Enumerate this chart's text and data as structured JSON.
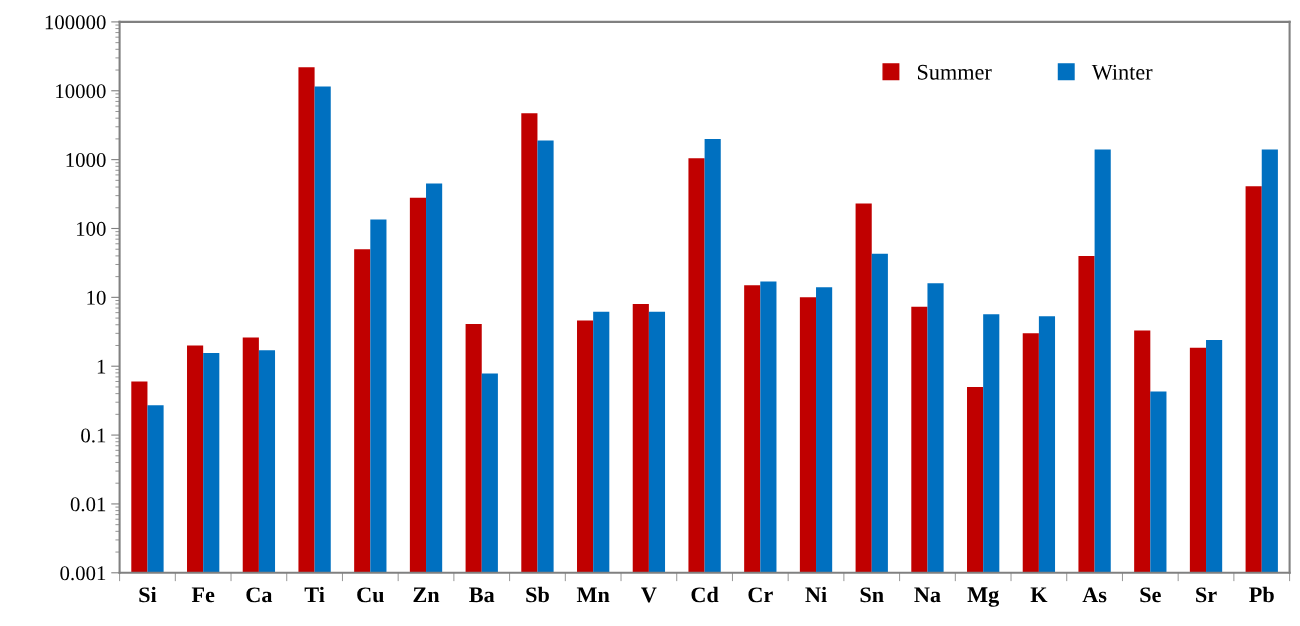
{
  "chart_data": {
    "type": "bar",
    "log": true,
    "categories": [
      "Si",
      "Fe",
      "Ca",
      "Ti",
      "Cu",
      "Zn",
      "Ba",
      "Sb",
      "Mn",
      "V",
      "Cd",
      "Cr",
      "Ni",
      "Sn",
      "Na",
      "Mg",
      "K",
      "As",
      "Se",
      "Sr",
      "Pb"
    ],
    "series": [
      {
        "name": "Summer",
        "color": "#c00000",
        "values": [
          0.6,
          2.0,
          2.6,
          22000,
          50,
          280,
          4.1,
          4700,
          4.6,
          8.0,
          1050,
          15,
          10,
          230,
          7.3,
          0.5,
          3.0,
          40,
          3.3,
          1.85,
          410
        ]
      },
      {
        "name": "Winter",
        "color": "#0070c0",
        "values": [
          0.27,
          1.55,
          1.7,
          11500,
          135,
          450,
          0.78,
          1900,
          6.2,
          6.2,
          2000,
          17,
          14,
          43,
          16,
          5.7,
          5.3,
          1400,
          0.43,
          2.4,
          1400
        ]
      }
    ],
    "ylim": [
      0.001,
      100000
    ],
    "yticks": [
      {
        "value": 0.001,
        "label": "0.001"
      },
      {
        "value": 0.01,
        "label": "0.01"
      },
      {
        "value": 0.1,
        "label": "0.1"
      },
      1,
      10,
      100,
      1000,
      10000,
      100000
    ],
    "grid": false,
    "legend": "top right"
  }
}
